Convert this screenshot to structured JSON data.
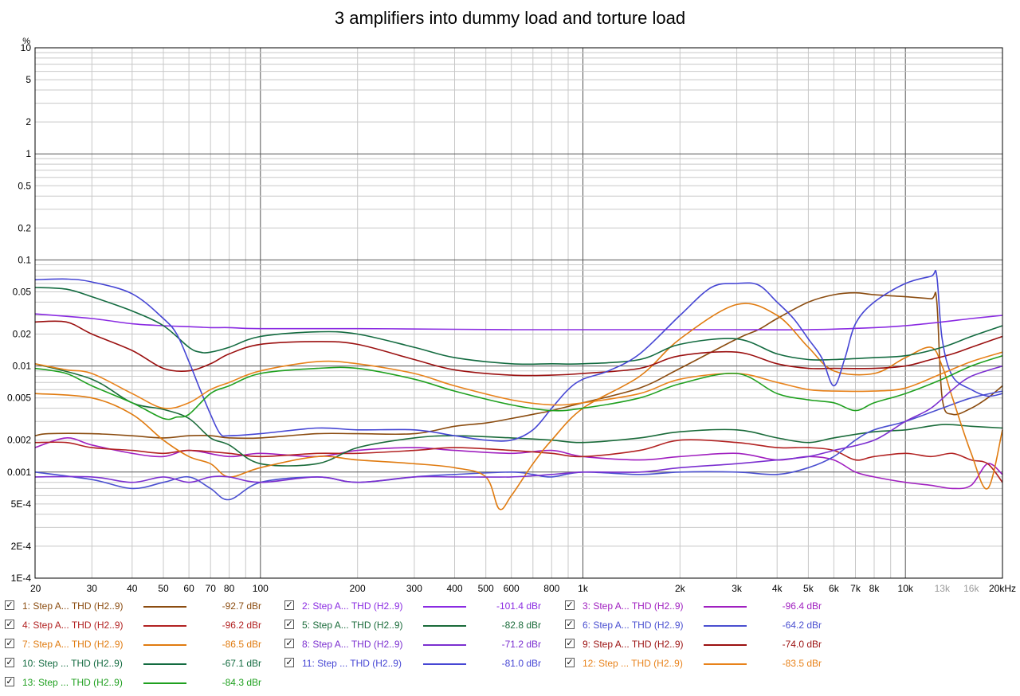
{
  "chart_data": {
    "type": "line",
    "title": "3 amplifiers into dummy load and torture load",
    "yunit": "%",
    "xscale": "log",
    "yscale": "log",
    "xlim": [
      20,
      20000
    ],
    "ylim": [
      0.0001,
      10
    ],
    "grid": true,
    "legend_position": "bottom",
    "y_ticks": [
      {
        "value": 10,
        "label": "10"
      },
      {
        "value": 5,
        "label": "5"
      },
      {
        "value": 2,
        "label": "2"
      },
      {
        "value": 1,
        "label": "1"
      },
      {
        "value": 0.5,
        "label": "0.5"
      },
      {
        "value": 0.2,
        "label": "0.2"
      },
      {
        "value": 0.1,
        "label": "0.1"
      },
      {
        "value": 0.05,
        "label": "0.05"
      },
      {
        "value": 0.02,
        "label": "0.02"
      },
      {
        "value": 0.01,
        "label": "0.01"
      },
      {
        "value": 0.005,
        "label": "0.005"
      },
      {
        "value": 0.002,
        "label": "0.002"
      },
      {
        "value": 0.001,
        "label": "0.001"
      },
      {
        "value": 0.0005,
        "label": "5E-4"
      },
      {
        "value": 0.0002,
        "label": "2E-4"
      },
      {
        "value": 0.0001,
        "label": "1E-4"
      }
    ],
    "x_ticks": [
      {
        "value": 20,
        "label": "20"
      },
      {
        "value": 30,
        "label": "30"
      },
      {
        "value": 40,
        "label": "40"
      },
      {
        "value": 50,
        "label": "50"
      },
      {
        "value": 60,
        "label": "60"
      },
      {
        "value": 70,
        "label": "70"
      },
      {
        "value": 80,
        "label": "80"
      },
      {
        "value": 100,
        "label": "100"
      },
      {
        "value": 200,
        "label": "200"
      },
      {
        "value": 300,
        "label": "300"
      },
      {
        "value": 400,
        "label": "400"
      },
      {
        "value": 500,
        "label": "500"
      },
      {
        "value": 600,
        "label": "600"
      },
      {
        "value": 800,
        "label": "800"
      },
      {
        "value": 1000,
        "label": "1k"
      },
      {
        "value": 2000,
        "label": "2k"
      },
      {
        "value": 3000,
        "label": "3k"
      },
      {
        "value": 4000,
        "label": "4k"
      },
      {
        "value": 5000,
        "label": "5k"
      },
      {
        "value": 6000,
        "label": "6k"
      },
      {
        "value": 7000,
        "label": "7k"
      },
      {
        "value": 8000,
        "label": "8k"
      },
      {
        "value": 10000,
        "label": "10k"
      },
      {
        "value": 13000,
        "label": "13k",
        "muted": true
      },
      {
        "value": 16000,
        "label": "16k",
        "muted": true
      },
      {
        "value": 20000,
        "label": "20kHz"
      }
    ],
    "x_grid": [
      20,
      30,
      40,
      50,
      60,
      70,
      80,
      90,
      100,
      200,
      300,
      400,
      500,
      600,
      700,
      800,
      900,
      1000,
      2000,
      3000,
      4000,
      5000,
      6000,
      7000,
      8000,
      9000,
      10000,
      20000
    ],
    "y_grid": [
      0.0001,
      0.0002,
      0.0003,
      0.0004,
      0.0005,
      0.0006,
      0.0007,
      0.0008,
      0.0009,
      0.001,
      0.002,
      0.003,
      0.004,
      0.005,
      0.006,
      0.007,
      0.008,
      0.009,
      0.01,
      0.02,
      0.03,
      0.04,
      0.05,
      0.06,
      0.07,
      0.08,
      0.09,
      0.1,
      0.2,
      0.3,
      0.4,
      0.5,
      0.6,
      0.7,
      0.8,
      0.9,
      1,
      2,
      3,
      4,
      5,
      6,
      7,
      8,
      9,
      10
    ],
    "series": [
      {
        "name": "1: Step A... THD (H2..9)",
        "value": "-92.7 dBr",
        "color": "#8b4c10",
        "x": [
          20,
          22,
          30,
          40,
          50,
          60,
          70,
          80,
          100,
          150,
          200,
          300,
          400,
          500,
          600,
          700,
          800,
          1000,
          1500,
          2000,
          3000,
          3500,
          4000,
          5000,
          6000,
          7000,
          8000,
          10000,
          12000,
          12500,
          13000,
          14000,
          16000,
          18000,
          20000
        ],
        "y": [
          0.0022,
          0.0023,
          0.0023,
          0.0022,
          0.0021,
          0.0022,
          0.0022,
          0.0021,
          0.0021,
          0.0023,
          0.0023,
          0.0023,
          0.0027,
          0.0029,
          0.0032,
          0.0035,
          0.0038,
          0.0045,
          0.0062,
          0.0095,
          0.018,
          0.022,
          0.028,
          0.04,
          0.047,
          0.049,
          0.047,
          0.045,
          0.043,
          0.042,
          0.005,
          0.0035,
          0.004,
          0.005,
          0.0065
        ]
      },
      {
        "name": "2: Step A... THD (H2..9)",
        "value": "-101.4 dBr",
        "color": "#8a2be2",
        "x": [
          20,
          30,
          40,
          50,
          60,
          70,
          80,
          100,
          200,
          400,
          600,
          1000,
          2000,
          3000,
          5000,
          8000,
          10000,
          13000,
          16000,
          20000
        ],
        "y": [
          0.031,
          0.028,
          0.025,
          0.024,
          0.0235,
          0.023,
          0.023,
          0.0225,
          0.0225,
          0.0222,
          0.022,
          0.022,
          0.022,
          0.022,
          0.022,
          0.023,
          0.024,
          0.026,
          0.028,
          0.03
        ]
      },
      {
        "name": "3: Step A... THD (H2..9)",
        "value": "-96.4 dBr",
        "color": "#a020c0",
        "x": [
          20,
          25,
          30,
          40,
          50,
          60,
          80,
          100,
          150,
          200,
          300,
          400,
          600,
          800,
          1000,
          1500,
          2000,
          3000,
          4000,
          5000,
          6000,
          7000,
          8000,
          10000,
          12000,
          14000,
          16000,
          18000,
          20000
        ],
        "y": [
          0.0017,
          0.0021,
          0.0018,
          0.0015,
          0.0014,
          0.0016,
          0.0014,
          0.0015,
          0.0014,
          0.0016,
          0.0017,
          0.0016,
          0.0015,
          0.0016,
          0.0014,
          0.0013,
          0.0014,
          0.0015,
          0.0013,
          0.0014,
          0.0013,
          0.001,
          0.0009,
          0.0008,
          0.00075,
          0.0007,
          0.00075,
          0.0012,
          0.00095
        ]
      },
      {
        "name": "4: Step A... THD (H2..9)",
        "value": "-96.2 dBr",
        "color": "#b22222",
        "x": [
          20,
          25,
          30,
          40,
          50,
          60,
          80,
          100,
          150,
          200,
          300,
          400,
          600,
          800,
          1000,
          1500,
          2000,
          3000,
          4000,
          5000,
          6000,
          7000,
          8000,
          10000,
          12000,
          14000,
          16000,
          18000,
          20000
        ],
        "y": [
          0.0019,
          0.0019,
          0.0017,
          0.0016,
          0.0015,
          0.0016,
          0.0015,
          0.0014,
          0.0015,
          0.0015,
          0.0016,
          0.0017,
          0.0016,
          0.0015,
          0.0014,
          0.0016,
          0.002,
          0.0019,
          0.0017,
          0.0017,
          0.0016,
          0.0013,
          0.0014,
          0.0015,
          0.0014,
          0.0015,
          0.0013,
          0.0012,
          0.0008
        ]
      },
      {
        "name": "5: Step A... THD (H2..9)",
        "value": "-82.8 dBr",
        "color": "#1a6b3a",
        "x": [
          20,
          30,
          40,
          50,
          60,
          70,
          80,
          100,
          150,
          200,
          300,
          400,
          600,
          800,
          1000,
          1500,
          2000,
          3000,
          4000,
          5000,
          6000,
          8000,
          10000,
          13000,
          16000,
          20000
        ],
        "y": [
          0.0105,
          0.0075,
          0.0045,
          0.0039,
          0.0032,
          0.0021,
          0.0018,
          0.0012,
          0.0012,
          0.0017,
          0.0021,
          0.0022,
          0.0021,
          0.002,
          0.0019,
          0.0021,
          0.0024,
          0.0025,
          0.0021,
          0.0019,
          0.0021,
          0.0024,
          0.0025,
          0.0028,
          0.0027,
          0.0026
        ]
      },
      {
        "name": "6: Step A... THD (H2..9)",
        "value": "-64.2 dBr",
        "color": "#4a4fd0",
        "x": [
          20,
          30,
          40,
          50,
          60,
          70,
          80,
          100,
          150,
          200,
          300,
          400,
          600,
          700,
          800,
          1000,
          1500,
          2000,
          3000,
          4000,
          5000,
          6000,
          7000,
          8000,
          10000,
          13000,
          16000,
          20000
        ],
        "y": [
          0.001,
          0.00085,
          0.0007,
          0.0008,
          0.0009,
          0.0007,
          0.00055,
          0.0008,
          0.0009,
          0.0008,
          0.0009,
          0.00095,
          0.001,
          0.00095,
          0.0009,
          0.001,
          0.00095,
          0.001,
          0.001,
          0.00095,
          0.0011,
          0.0014,
          0.002,
          0.0025,
          0.003,
          0.004,
          0.005,
          0.0058
        ]
      },
      {
        "name": "7: Step A... THD (H2..9)",
        "value": "-86.5 dBr",
        "color": "#e07b10",
        "x": [
          20,
          30,
          40,
          50,
          60,
          70,
          80,
          100,
          150,
          200,
          300,
          400,
          500,
          550,
          600,
          700,
          800,
          1000,
          1500,
          2000,
          3000,
          4000,
          5000,
          6000,
          8000,
          10000,
          12000,
          13000,
          14000,
          16000,
          18000,
          20000
        ],
        "y": [
          0.0055,
          0.005,
          0.0035,
          0.002,
          0.0014,
          0.0012,
          0.0009,
          0.0011,
          0.0014,
          0.0013,
          0.0012,
          0.0011,
          0.0009,
          0.00045,
          0.0006,
          0.0012,
          0.002,
          0.004,
          0.008,
          0.018,
          0.038,
          0.03,
          0.015,
          0.009,
          0.0085,
          0.012,
          0.015,
          0.01,
          0.005,
          0.0015,
          0.0007,
          0.0025
        ]
      },
      {
        "name": "8: Step A... THD (H2..9)",
        "value": "-71.2 dBr",
        "color": "#7b2fd0",
        "x": [
          20,
          30,
          40,
          50,
          60,
          70,
          80,
          100,
          150,
          200,
          300,
          400,
          600,
          800,
          1000,
          1500,
          2000,
          3000,
          4000,
          5000,
          6000,
          8000,
          10000,
          12000,
          14000,
          16000,
          20000
        ],
        "y": [
          0.0009,
          0.0009,
          0.0008,
          0.0009,
          0.0008,
          0.0009,
          0.0009,
          0.0008,
          0.0009,
          0.0008,
          0.0009,
          0.0009,
          0.0009,
          0.00095,
          0.001,
          0.001,
          0.0011,
          0.0012,
          0.0013,
          0.0014,
          0.0016,
          0.002,
          0.003,
          0.004,
          0.006,
          0.008,
          0.01
        ]
      },
      {
        "name": "9: Step A... THD (H2..9)",
        "value": "-74.0 dBr",
        "color": "#9b1010",
        "x": [
          20,
          25,
          30,
          40,
          50,
          60,
          70,
          80,
          100,
          150,
          200,
          300,
          400,
          600,
          800,
          1000,
          1500,
          2000,
          3000,
          4000,
          5000,
          6000,
          8000,
          10000,
          12000,
          14000,
          16000,
          18000,
          20000
        ],
        "y": [
          0.026,
          0.026,
          0.02,
          0.014,
          0.0095,
          0.009,
          0.0105,
          0.013,
          0.016,
          0.017,
          0.016,
          0.0115,
          0.0092,
          0.0082,
          0.0082,
          0.0085,
          0.0095,
          0.0125,
          0.0135,
          0.0105,
          0.0095,
          0.0095,
          0.0095,
          0.01,
          0.0115,
          0.013,
          0.015,
          0.017,
          0.019
        ]
      },
      {
        "name": "10: Step ... THD (H2..9)",
        "value": "-67.1 dBr",
        "color": "#136b40",
        "x": [
          20,
          25,
          30,
          40,
          50,
          60,
          65,
          70,
          80,
          100,
          150,
          200,
          300,
          400,
          600,
          800,
          1000,
          1500,
          2000,
          3000,
          4000,
          5000,
          6000,
          8000,
          10000,
          13000,
          16000,
          20000
        ],
        "y": [
          0.055,
          0.053,
          0.045,
          0.033,
          0.024,
          0.015,
          0.0135,
          0.0135,
          0.015,
          0.019,
          0.021,
          0.02,
          0.015,
          0.012,
          0.0105,
          0.0105,
          0.0105,
          0.0115,
          0.016,
          0.018,
          0.013,
          0.0115,
          0.0115,
          0.012,
          0.0125,
          0.015,
          0.019,
          0.024
        ]
      },
      {
        "name": "11: Step ... THD (H2..9)",
        "value": "-81.0 dBr",
        "color": "#4646d4",
        "x": [
          20,
          25,
          30,
          40,
          50,
          55,
          60,
          65,
          70,
          75,
          80,
          100,
          150,
          200,
          300,
          400,
          500,
          600,
          700,
          800,
          900,
          1000,
          1200,
          1500,
          2000,
          2500,
          3000,
          3500,
          4000,
          4500,
          5000,
          5500,
          6000,
          6500,
          7000,
          8000,
          10000,
          12000,
          12500,
          13000,
          14000,
          16000,
          18000,
          20000
        ],
        "y": [
          0.065,
          0.066,
          0.062,
          0.048,
          0.028,
          0.02,
          0.011,
          0.006,
          0.0035,
          0.0023,
          0.0022,
          0.0023,
          0.0026,
          0.0025,
          0.0025,
          0.0022,
          0.002,
          0.002,
          0.0025,
          0.004,
          0.006,
          0.0075,
          0.009,
          0.013,
          0.03,
          0.055,
          0.06,
          0.058,
          0.04,
          0.028,
          0.018,
          0.012,
          0.0065,
          0.012,
          0.025,
          0.04,
          0.06,
          0.07,
          0.072,
          0.018,
          0.008,
          0.006,
          0.0052,
          0.0055
        ]
      },
      {
        "name": "12: Step ... THD (H2..9)",
        "value": "-83.5 dBr",
        "color": "#e8821a",
        "x": [
          20,
          25,
          30,
          40,
          50,
          60,
          70,
          80,
          100,
          150,
          200,
          300,
          400,
          600,
          800,
          1000,
          1500,
          2000,
          3000,
          4000,
          5000,
          6000,
          8000,
          10000,
          13000,
          16000,
          20000
        ],
        "y": [
          0.0105,
          0.0092,
          0.0085,
          0.0055,
          0.004,
          0.0045,
          0.006,
          0.007,
          0.009,
          0.011,
          0.0105,
          0.0085,
          0.0065,
          0.0048,
          0.0043,
          0.0045,
          0.0055,
          0.0075,
          0.0085,
          0.007,
          0.006,
          0.0058,
          0.0058,
          0.0062,
          0.0085,
          0.011,
          0.0135
        ]
      },
      {
        "name": "13: Step ... THD (H2..9)",
        "value": "-84.3 dBr",
        "color": "#1fa01f",
        "x": [
          20,
          25,
          30,
          40,
          50,
          55,
          60,
          70,
          80,
          100,
          150,
          200,
          300,
          400,
          600,
          800,
          1000,
          1500,
          2000,
          3000,
          4000,
          5000,
          6000,
          7000,
          8000,
          10000,
          13000,
          16000,
          20000
        ],
        "y": [
          0.0095,
          0.0085,
          0.0065,
          0.0045,
          0.0032,
          0.0033,
          0.0035,
          0.0055,
          0.0065,
          0.0085,
          0.0095,
          0.0095,
          0.0075,
          0.0058,
          0.0043,
          0.0038,
          0.004,
          0.005,
          0.0068,
          0.0085,
          0.0055,
          0.0048,
          0.0045,
          0.0038,
          0.0045,
          0.0055,
          0.0075,
          0.01,
          0.0125
        ]
      }
    ]
  }
}
